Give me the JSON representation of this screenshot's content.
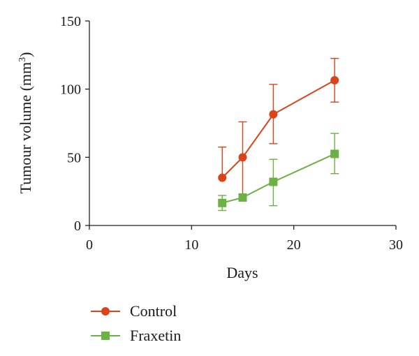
{
  "chart_data": {
    "type": "line",
    "xlabel": "Days",
    "ylabel": "Tumour volume (mm",
    "ylabel_superscript": "3",
    "ylabel_close": ")",
    "xlim": [
      0,
      30
    ],
    "ylim": [
      0,
      150
    ],
    "x_ticks": [
      "0",
      "10",
      "20",
      "30"
    ],
    "y_ticks": [
      "0",
      "50",
      "100",
      "150"
    ],
    "grid": false,
    "legend_position": "bottom-left",
    "series": [
      {
        "name": "Control",
        "color": "#d9441b",
        "marker": "circle",
        "x": [
          13,
          15,
          18,
          24
        ],
        "y": [
          35,
          50,
          81.5,
          106.5
        ],
        "err_upper": [
          57.5,
          76,
          103.5,
          122.5
        ],
        "err_lower": [
          null,
          22,
          60,
          90.5
        ]
      },
      {
        "name": "Fraxetin",
        "color": "#6bb144",
        "marker": "square",
        "x": [
          13,
          15,
          18,
          24
        ],
        "y": [
          16.5,
          20.5,
          32,
          52.5
        ],
        "err_upper": [
          22,
          23,
          48.5,
          67.5
        ],
        "err_lower": [
          11,
          20.5,
          14.5,
          38
        ]
      }
    ]
  }
}
